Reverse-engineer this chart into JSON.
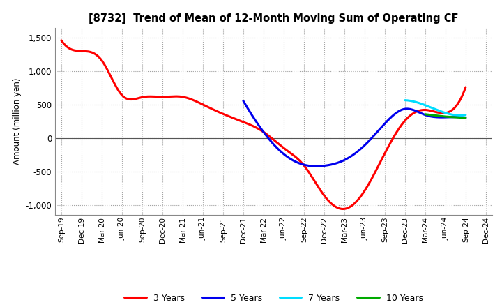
{
  "title": "[8732]  Trend of Mean of 12-Month Moving Sum of Operating CF",
  "ylabel": "Amount (million yen)",
  "ylim": [
    -1150,
    1650
  ],
  "yticks": [
    -1000,
    -500,
    0,
    500,
    1000,
    1500
  ],
  "background_color": "#ffffff",
  "grid_color": "#999999",
  "series": {
    "3 Years": {
      "color": "#ff0000",
      "dates": [
        "Sep-19",
        "Dec-19",
        "Mar-20",
        "Jun-20",
        "Sep-20",
        "Dec-20",
        "Mar-21",
        "Jun-21",
        "Sep-21",
        "Dec-21",
        "Mar-22",
        "Jun-22",
        "Sep-22",
        "Dec-22",
        "Mar-23",
        "Jun-23",
        "Sep-23",
        "Dec-23",
        "Mar-24",
        "Jun-24",
        "Sep-24"
      ],
      "values": [
        1460,
        1300,
        1160,
        640,
        610,
        615,
        615,
        500,
        360,
        240,
        90,
        -150,
        -410,
        -860,
        -1060,
        -790,
        -230,
        260,
        420,
        375,
        760
      ]
    },
    "5 Years": {
      "color": "#0000ee",
      "dates": [
        "Dec-21",
        "Mar-22",
        "Jun-22",
        "Sep-22",
        "Dec-22",
        "Mar-23",
        "Jun-23",
        "Sep-23",
        "Dec-23",
        "Mar-24",
        "Jun-24",
        "Sep-24"
      ],
      "values": [
        555,
        90,
        -240,
        -400,
        -415,
        -330,
        -110,
        215,
        435,
        345,
        310,
        305
      ]
    },
    "7 Years": {
      "color": "#00ddff",
      "dates": [
        "Dec-23",
        "Mar-24",
        "Jun-24",
        "Sep-24"
      ],
      "values": [
        565,
        490,
        375,
        345
      ]
    },
    "10 Years": {
      "color": "#00aa00",
      "dates": [
        "Mar-24",
        "Jun-24",
        "Sep-24"
      ],
      "values": [
        355,
        320,
        300
      ]
    }
  },
  "xtick_labels": [
    "Sep-19",
    "Dec-19",
    "Mar-20",
    "Jun-20",
    "Sep-20",
    "Dec-20",
    "Mar-21",
    "Jun-21",
    "Sep-21",
    "Dec-21",
    "Mar-22",
    "Jun-22",
    "Sep-22",
    "Dec-22",
    "Mar-23",
    "Jun-23",
    "Sep-23",
    "Dec-23",
    "Mar-24",
    "Jun-24",
    "Sep-24",
    "Dec-24"
  ],
  "legend_order": [
    "3 Years",
    "5 Years",
    "7 Years",
    "10 Years"
  ]
}
